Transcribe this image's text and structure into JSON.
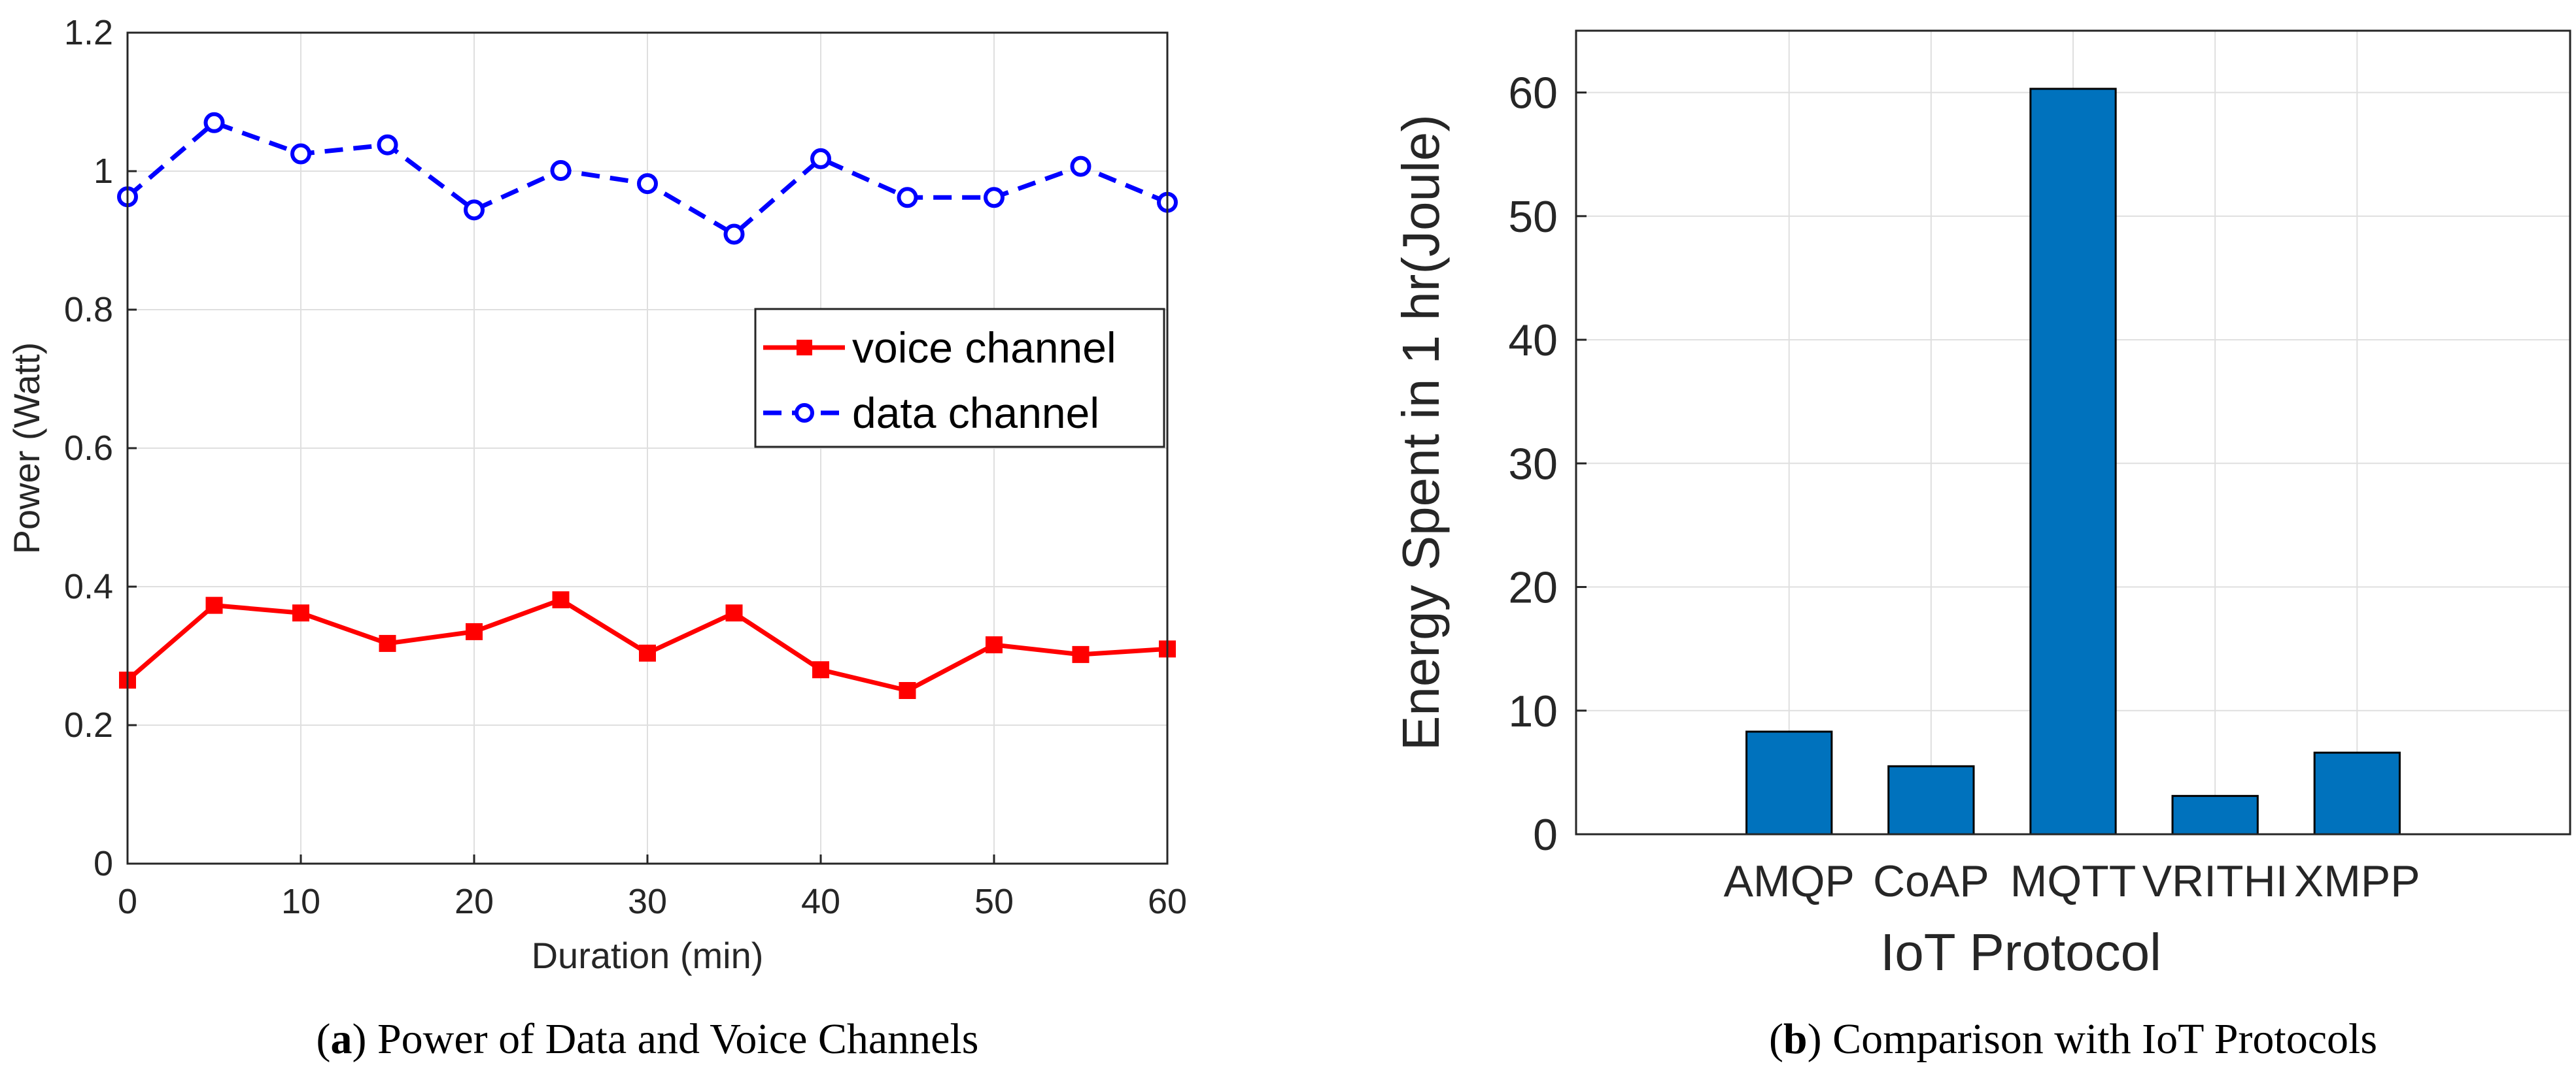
{
  "chart_data": [
    {
      "type": "line",
      "title": "",
      "xlabel": "Duration (min)",
      "ylabel": "Power (Watt)",
      "xlim": [
        0,
        60
      ],
      "ylim": [
        0,
        1.2
      ],
      "xticks": [
        "0",
        "10",
        "20",
        "30",
        "40",
        "50",
        "60"
      ],
      "yticks": [
        "0",
        "0.2",
        "0.4",
        "0.6",
        "0.8",
        "1",
        "1.2"
      ],
      "grid": true,
      "legend_position": "center-right",
      "x": [
        0,
        5,
        10,
        15,
        20,
        25,
        30,
        35,
        40,
        45,
        50,
        55,
        60
      ],
      "series": [
        {
          "name": "voice channel",
          "color": "#ff0000",
          "style": "solid",
          "marker": "square",
          "values": [
            0.265,
            0.373,
            0.362,
            0.318,
            0.335,
            0.381,
            0.304,
            0.362,
            0.28,
            0.25,
            0.316,
            0.302,
            0.31
          ]
        },
        {
          "name": "data channel",
          "color": "#0000ff",
          "style": "dashed",
          "marker": "circle",
          "values": [
            0.963,
            1.07,
            1.025,
            1.038,
            0.944,
            1.001,
            0.982,
            0.909,
            1.018,
            0.962,
            0.962,
            1.007,
            0.955
          ]
        }
      ],
      "caption_label": "a",
      "caption_text": "Power of Data and Voice Channels"
    },
    {
      "type": "bar",
      "title": "",
      "xlabel": "IoT Protocol",
      "ylabel": "Energy Spent in 1 hr(Joule)",
      "ylim": [
        0,
        65
      ],
      "yticks": [
        "0",
        "10",
        "20",
        "30",
        "40",
        "50",
        "60"
      ],
      "grid": true,
      "bar_color": "#0072bd",
      "categories": [
        "AMQP",
        "CoAP",
        "MQTT",
        "VRITHI",
        "XMPP"
      ],
      "values": [
        8.3,
        5.5,
        60.3,
        3.1,
        6.6
      ],
      "caption_label": "b",
      "caption_text": "Comparison with IoT Protocols"
    }
  ]
}
